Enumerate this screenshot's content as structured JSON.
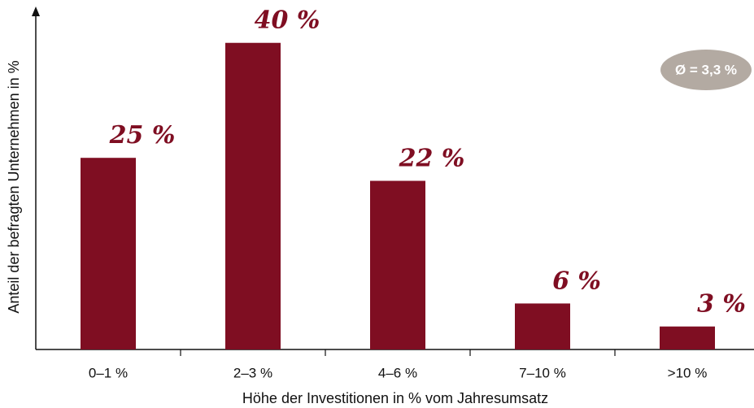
{
  "chart_data": {
    "type": "bar",
    "categories": [
      "0–1 %",
      "2–3 %",
      "4–6 %",
      "7–10 %",
      ">10 %"
    ],
    "values": [
      25,
      40,
      22,
      6,
      3
    ],
    "value_labels": [
      "25 %",
      "40 %",
      "22 %",
      "6 %",
      "3 %"
    ],
    "color": "#7f0e22",
    "ylim": [
      0,
      44
    ],
    "x_label": "Höhe der Investitionen in % vom Jahresumsatz",
    "y_label": "Anteil der befragten Unternehmen in %",
    "annotation": "Ø = 3,3 %"
  }
}
